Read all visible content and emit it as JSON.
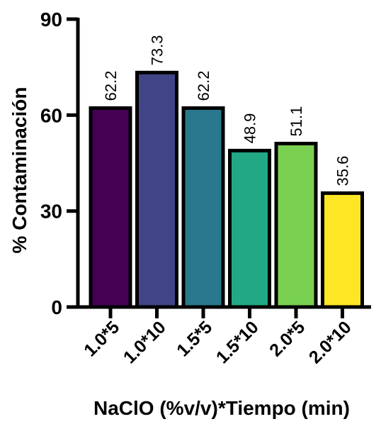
{
  "chart_data": {
    "type": "bar",
    "title": "",
    "xlabel": "NaClO (%v/v)*Tiempo (min)",
    "ylabel": "% Contaminación",
    "ylim": [
      0,
      90
    ],
    "yticks": [
      0,
      30,
      60,
      90
    ],
    "categories": [
      "1.0*5",
      "1.0*10",
      "1.5*5",
      "1.5*10",
      "2.0*5",
      "2.0*10"
    ],
    "values": [
      62.2,
      73.3,
      62.2,
      48.9,
      51.1,
      35.6
    ],
    "data_labels": [
      "62.2",
      "73.3",
      "62.2",
      "48.9",
      "51.1",
      "35.6"
    ],
    "colors": [
      "#440154",
      "#414487",
      "#2a788e",
      "#22a884",
      "#7ad151",
      "#fde725"
    ],
    "grid": false,
    "legend": "none"
  }
}
